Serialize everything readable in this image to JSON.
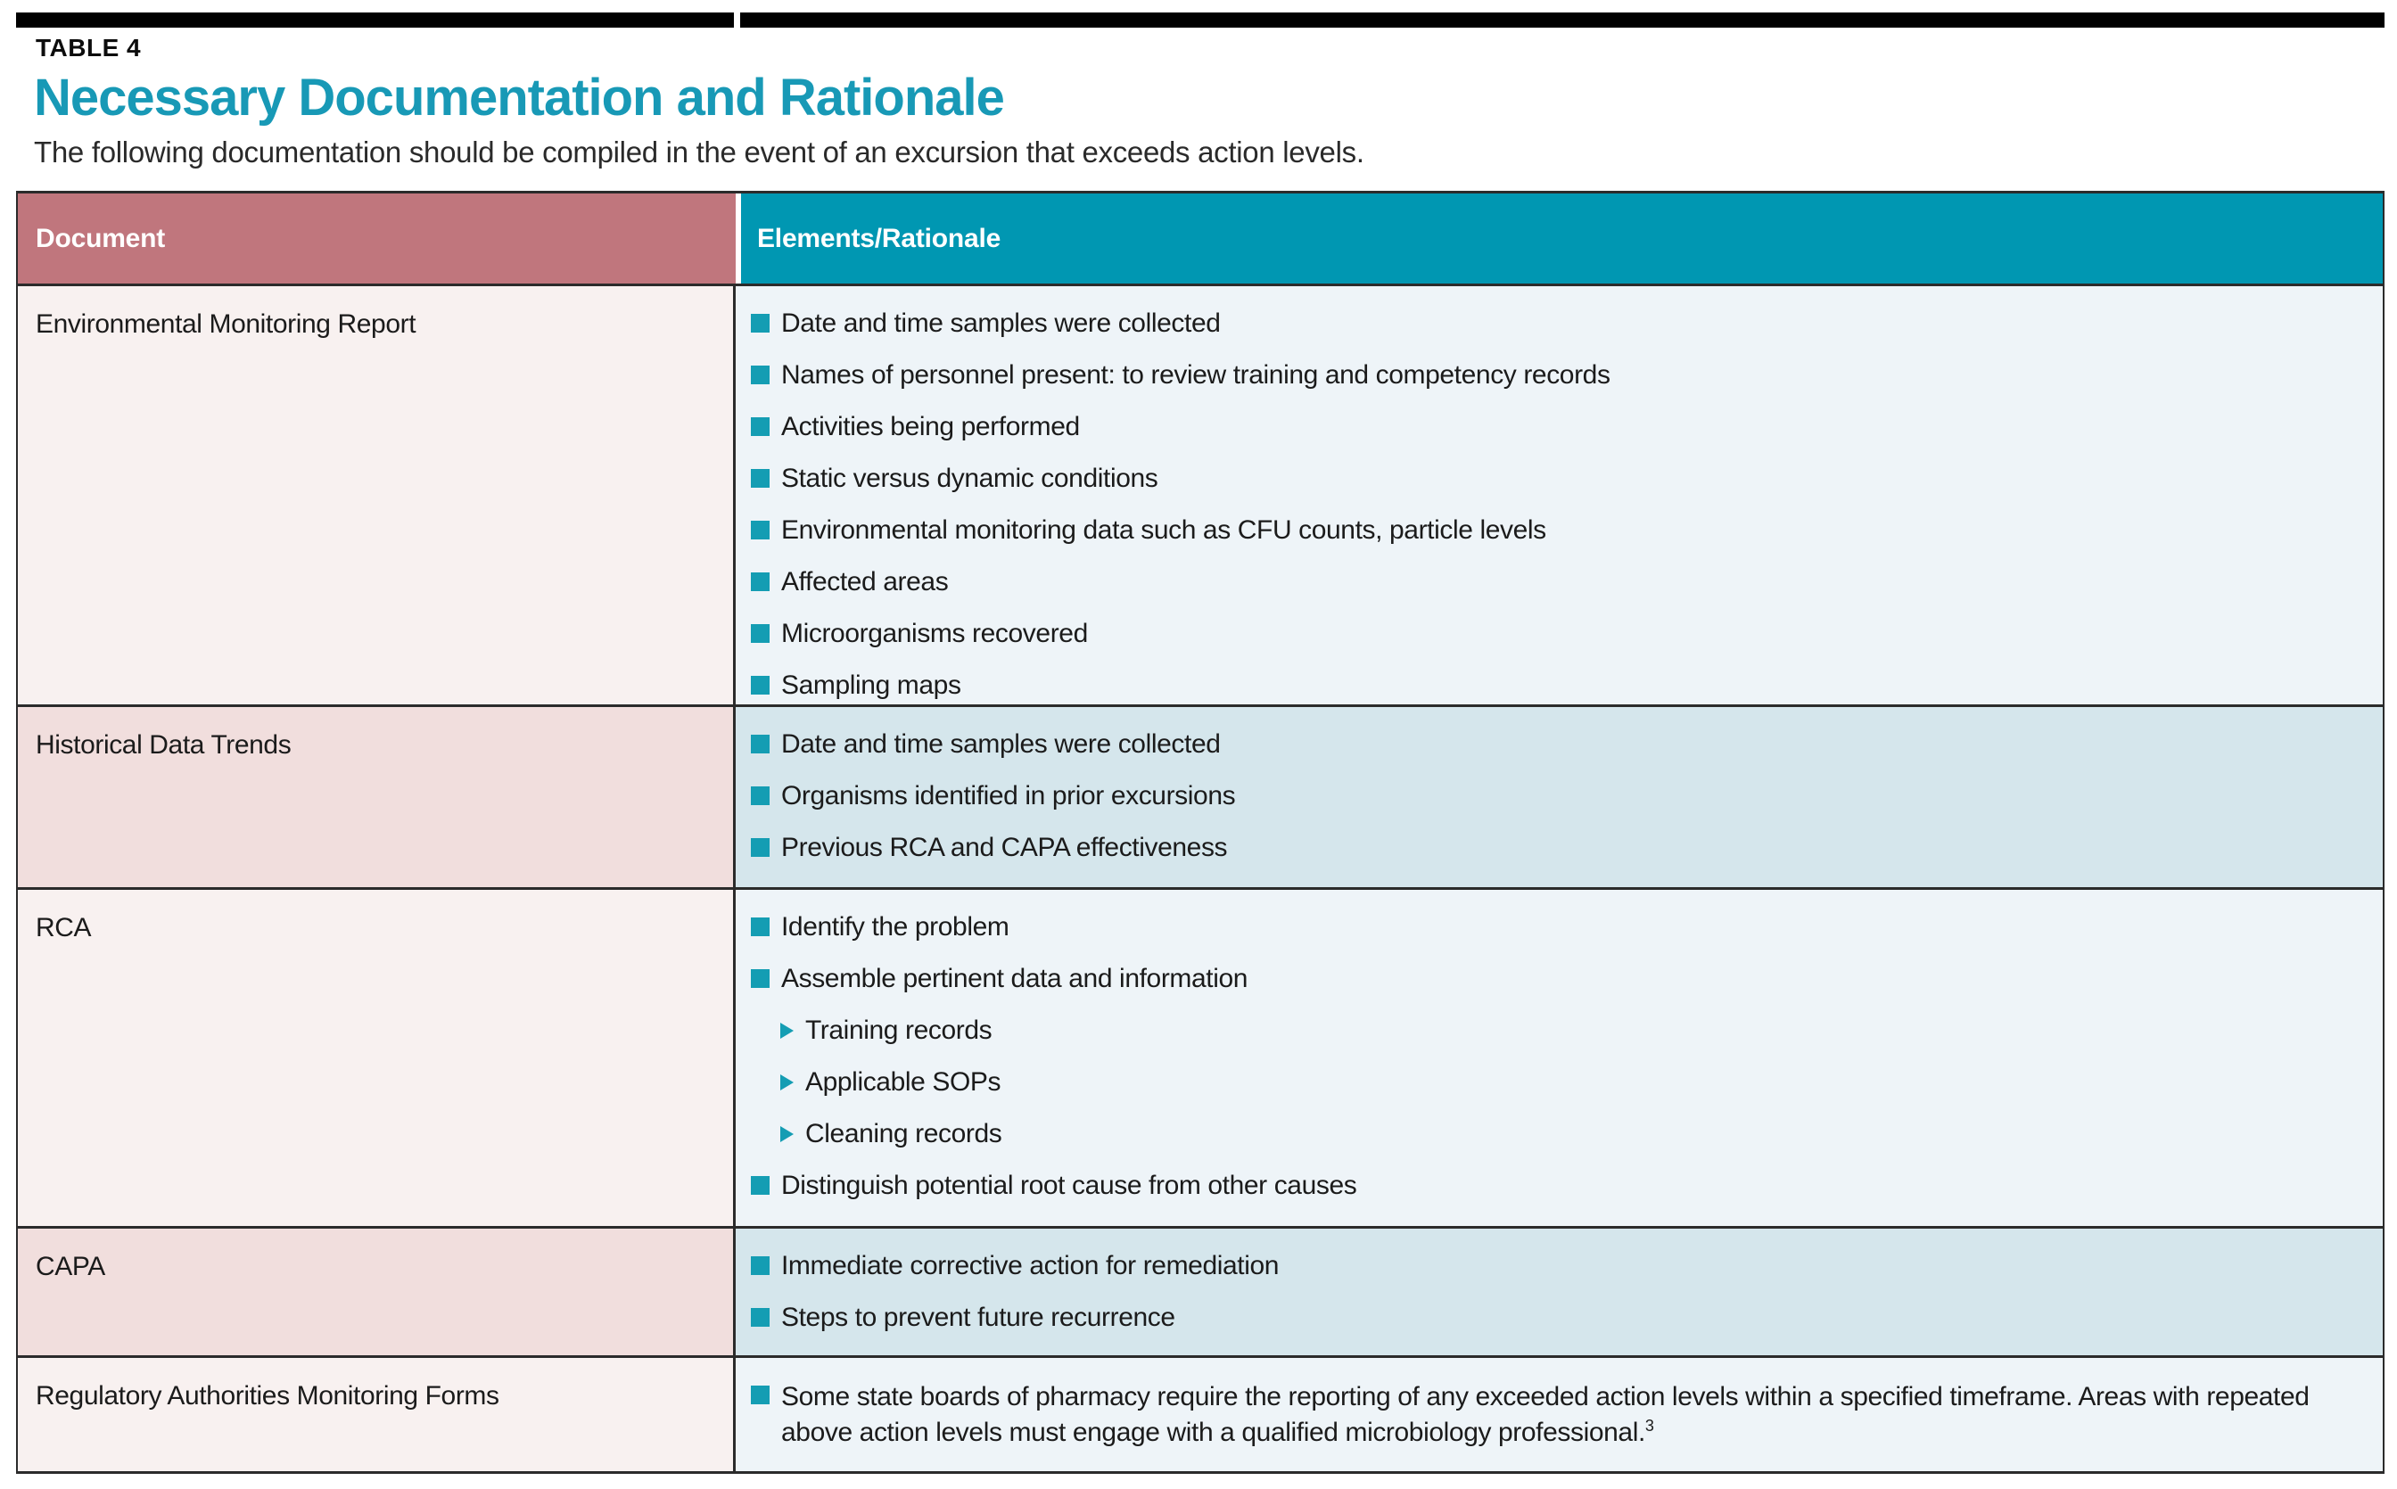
{
  "page": {
    "kicker": "TABLE 4",
    "title": "Necessary Documentation and Rationale",
    "subtitle": "The following documentation should be compiled in the event of an excursion that exceeds action levels."
  },
  "table": {
    "columns": [
      {
        "label": "Document"
      },
      {
        "label": "Elements/Rationale"
      }
    ],
    "rows": [
      {
        "document": "Environmental Monitoring Report",
        "items": [
          {
            "level": "bullet",
            "text": "Date and time samples were collected"
          },
          {
            "level": "bullet",
            "text": "Names of personnel present: to review training and competency records"
          },
          {
            "level": "bullet",
            "text": "Activities being performed"
          },
          {
            "level": "bullet",
            "text": "Static versus dynamic conditions"
          },
          {
            "level": "bullet",
            "text": "Environmental monitoring data such as CFU counts, particle levels"
          },
          {
            "level": "bullet",
            "text": "Affected areas"
          },
          {
            "level": "bullet",
            "text": "Microorganisms recovered"
          },
          {
            "level": "bullet",
            "text": "Sampling maps"
          }
        ]
      },
      {
        "document": "Historical Data Trends",
        "items": [
          {
            "level": "bullet",
            "text": "Date and time samples were collected"
          },
          {
            "level": "bullet",
            "text": "Organisms identified in prior excursions"
          },
          {
            "level": "bullet",
            "text": "Previous RCA and CAPA effectiveness"
          }
        ]
      },
      {
        "document": "RCA",
        "items": [
          {
            "level": "bullet",
            "text": "Identify the problem"
          },
          {
            "level": "bullet",
            "text": "Assemble pertinent data and information"
          },
          {
            "level": "sub",
            "text": "Training records"
          },
          {
            "level": "sub",
            "text": "Applicable SOPs"
          },
          {
            "level": "sub",
            "text": "Cleaning records"
          },
          {
            "level": "bullet",
            "text": "Distinguish potential root cause from other causes"
          }
        ]
      },
      {
        "document": "CAPA",
        "items": [
          {
            "level": "bullet",
            "text": "Immediate corrective action for remediation"
          },
          {
            "level": "bullet",
            "text": "Steps to prevent future recurrence"
          }
        ]
      },
      {
        "document": "Regulatory Authorities Monitoring Forms",
        "items": [
          {
            "level": "bullet",
            "text": "Some state boards of pharmacy require the reporting of any exceeded action levels within a specified timeframe. Areas with repeated above action levels must engage with a qualified microbiology professional.",
            "sup": "3"
          }
        ]
      }
    ]
  },
  "colors": {
    "header_document_bg": "#c0767d",
    "header_elements_bg": "#0097b2",
    "title_text": "#1899b6",
    "bullet_marker": "#149db3",
    "row_odd_left_bg": "#f8f1f0",
    "row_odd_right_bg": "#eef4f8",
    "row_even_left_bg": "#f1dedd",
    "row_even_right_bg": "#d5e6ec",
    "top_bar": "#000000",
    "border": "#2b2b2b"
  }
}
